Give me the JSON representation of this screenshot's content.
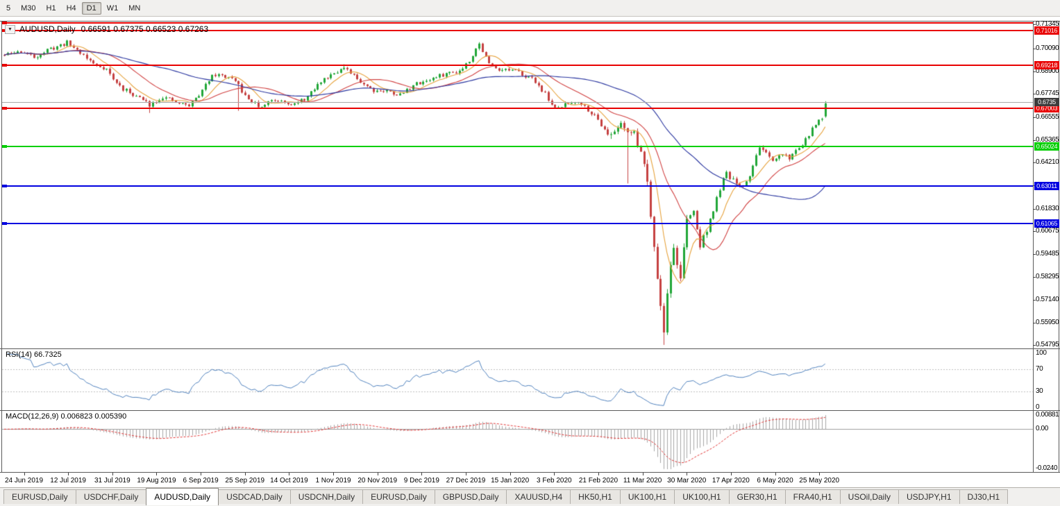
{
  "toolbar": {
    "timeframes": [
      {
        "label": "5",
        "active": false
      },
      {
        "label": "M30",
        "active": false
      },
      {
        "label": "H1",
        "active": false
      },
      {
        "label": "H4",
        "active": false
      },
      {
        "label": "D1",
        "active": true
      },
      {
        "label": "W1",
        "active": false
      },
      {
        "label": "MN",
        "active": false
      }
    ]
  },
  "chart_header": {
    "dropdown_icon": "▼",
    "symbol": "AUDUSD,Daily",
    "ohlc": "0.66591 0.67375 0.66523 0.67263"
  },
  "price_axis": {
    "min": 0.54795,
    "max": 0.71345,
    "labels": [
      "0.71345",
      "0.70090",
      "0.68900",
      "0.67745",
      "0.66555",
      "0.65365",
      "0.64210",
      "0.63020",
      "0.61830",
      "0.60675",
      "0.59485",
      "0.58295",
      "0.57140",
      "0.55950",
      "0.54795"
    ]
  },
  "date_axis": {
    "labels": [
      "24 Jun 2019",
      "12 Jul 2019",
      "31 Jul 2019",
      "19 Aug 2019",
      "6 Sep 2019",
      "25 Sep 2019",
      "14 Oct 2019",
      "1 Nov 2019",
      "20 Nov 2019",
      "9 Dec 2019",
      "27 Dec 2019",
      "15 Jan 2020",
      "3 Feb 2020",
      "21 Feb 2020",
      "11 Mar 2020",
      "30 Mar 2020",
      "17 Apr 2020",
      "6 May 2020",
      "25 May 2020"
    ]
  },
  "levels": [
    {
      "value": "",
      "price": 0.7142,
      "color": "#e80000"
    },
    {
      "value": "0.71016",
      "price": 0.71016,
      "color": "#e80000"
    },
    {
      "value": "0.69218",
      "price": 0.69218,
      "color": "#e80000"
    },
    {
      "value": "0.67003",
      "price": 0.67003,
      "color": "#e80000"
    },
    {
      "value": "0.65024",
      "price": 0.65024,
      "color": "#00cf00"
    },
    {
      "value": "0.63011",
      "price": 0.63011,
      "color": "#0000e0"
    },
    {
      "value": "0.61065",
      "price": 0.61065,
      "color": "#0000e0"
    }
  ],
  "current_price": {
    "value": "0.6735",
    "price": 0.6735,
    "tag_color": "#3c3c3c"
  },
  "rsi_panel": {
    "label": "RSI(14) 66.7325",
    "line_color": "#4f81bd",
    "levels": [
      70,
      30
    ],
    "axis_labels": [
      {
        "text": "100",
        "v": 100
      },
      {
        "text": "70",
        "v": 70
      },
      {
        "text": "30",
        "v": 30
      },
      {
        "text": "0",
        "v": 0
      }
    ]
  },
  "macd_panel": {
    "label": "MACD(12,26,9) 0.006823 0.005390",
    "histogram_color": "#a6a6a6",
    "signal_color": "#e03030",
    "range": [
      -0.0245,
      0.0095
    ],
    "axis_labels": [
      {
        "text": "0.00881",
        "v": 0.00881
      },
      {
        "text": "0.00",
        "v": 0
      },
      {
        "text": "-0.0240",
        "v": -0.024
      }
    ]
  },
  "tabs": [
    {
      "label": "EURUSD,Daily",
      "active": false
    },
    {
      "label": "USDCHF,Daily",
      "active": false
    },
    {
      "label": "AUDUSD,Daily",
      "active": true
    },
    {
      "label": "USDCAD,Daily",
      "active": false
    },
    {
      "label": "USDCNH,Daily",
      "active": false
    },
    {
      "label": "EURUSD,Daily",
      "active": false
    },
    {
      "label": "GBPUSD,Daily",
      "active": false
    },
    {
      "label": "XAUUSD,H4",
      "active": false
    },
    {
      "label": "HK50,H1",
      "active": false
    },
    {
      "label": "UK100,H1",
      "active": false
    },
    {
      "label": "UK100,H1",
      "active": false
    },
    {
      "label": "GER30,H1",
      "active": false
    },
    {
      "label": "FRA40,H1",
      "active": false
    },
    {
      "label": "USOil,Daily",
      "active": false
    },
    {
      "label": "USDJPY,H1",
      "active": false
    },
    {
      "label": "DJ30,H1",
      "active": false
    }
  ],
  "chart_data": {
    "type": "candlestick",
    "symbol": "AUDUSD",
    "timeframe": "Daily",
    "last_ohlc": {
      "open": 0.66591,
      "high": 0.67375,
      "low": 0.66523,
      "close": 0.67263
    },
    "y_range": [
      0.54795,
      0.71345
    ],
    "x_range": [
      "24 Jun 2019",
      "29 May 2020"
    ],
    "num_candles": 250,
    "up_color": "#21a637",
    "down_color": "#c54040",
    "price_path": [
      [
        0,
        0.6975
      ],
      [
        5,
        0.6995
      ],
      [
        9,
        0.6965
      ],
      [
        13,
        0.7
      ],
      [
        19,
        0.704
      ],
      [
        23,
        0.699
      ],
      [
        27,
        0.693
      ],
      [
        31,
        0.6905
      ],
      [
        33,
        0.6848
      ],
      [
        36,
        0.68
      ],
      [
        40,
        0.6765
      ],
      [
        44,
        0.672
      ],
      [
        48,
        0.676
      ],
      [
        52,
        0.673
      ],
      [
        56,
        0.6715
      ],
      [
        60,
        0.679
      ],
      [
        63,
        0.688
      ],
      [
        68,
        0.686
      ],
      [
        71,
        0.682
      ],
      [
        73,
        0.676
      ],
      [
        78,
        0.67
      ],
      [
        80,
        0.674
      ],
      [
        84,
        0.6745
      ],
      [
        88,
        0.672
      ],
      [
        92,
        0.676
      ],
      [
        96,
        0.684
      ],
      [
        100,
        0.689
      ],
      [
        103,
        0.6905
      ],
      [
        108,
        0.684
      ],
      [
        112,
        0.6795
      ],
      [
        116,
        0.679
      ],
      [
        120,
        0.677
      ],
      [
        124,
        0.682
      ],
      [
        127,
        0.684
      ],
      [
        130,
        0.6855
      ],
      [
        134,
        0.688
      ],
      [
        138,
        0.6895
      ],
      [
        141,
        0.695
      ],
      [
        143,
        0.701
      ],
      [
        144,
        0.7032
      ],
      [
        147,
        0.693
      ],
      [
        150,
        0.6905
      ],
      [
        154,
        0.6895
      ],
      [
        157,
        0.688
      ],
      [
        161,
        0.684
      ],
      [
        164,
        0.6775
      ],
      [
        167,
        0.6695
      ],
      [
        170,
        0.672
      ],
      [
        174,
        0.674
      ],
      [
        178,
        0.668
      ],
      [
        181,
        0.662
      ],
      [
        184,
        0.6555
      ],
      [
        187,
        0.663
      ],
      [
        189,
        0.659
      ],
      [
        191,
        0.656
      ],
      [
        193,
        0.649
      ],
      [
        195,
        0.633
      ],
      [
        197,
        0.6
      ],
      [
        199,
        0.568
      ],
      [
        200,
        0.5545
      ],
      [
        201,
        0.577
      ],
      [
        203,
        0.598
      ],
      [
        205,
        0.583
      ],
      [
        207,
        0.612
      ],
      [
        209,
        0.617
      ],
      [
        211,
        0.599
      ],
      [
        213,
        0.608
      ],
      [
        215,
        0.617
      ],
      [
        217,
        0.629
      ],
      [
        219,
        0.636
      ],
      [
        221,
        0.633
      ],
      [
        223,
        0.629
      ],
      [
        225,
        0.632
      ],
      [
        227,
        0.64
      ],
      [
        229,
        0.651
      ],
      [
        231,
        0.646
      ],
      [
        233,
        0.642
      ],
      [
        236,
        0.647
      ],
      [
        238,
        0.6445
      ],
      [
        240,
        0.648
      ],
      [
        242,
        0.652
      ],
      [
        244,
        0.656
      ],
      [
        246,
        0.662
      ],
      [
        248,
        0.6655
      ],
      [
        249,
        0.67
      ]
    ],
    "volatility": [
      [
        0,
        1.0
      ],
      [
        178,
        1.0
      ],
      [
        186,
        1.6
      ],
      [
        192,
        2.2
      ],
      [
        199,
        3.2
      ],
      [
        203,
        3.0
      ],
      [
        209,
        2.0
      ],
      [
        216,
        1.4
      ],
      [
        249,
        1.0
      ]
    ],
    "spikes": [
      {
        "i": 44,
        "low": 0.6677
      },
      {
        "i": 71,
        "low": 0.6688
      },
      {
        "i": 103,
        "high": 0.6928
      },
      {
        "i": 144,
        "high": 0.7041
      },
      {
        "i": 184,
        "low": 0.6543
      },
      {
        "i": 189,
        "low": 0.6313
      },
      {
        "i": 200,
        "low": 0.548
      }
    ],
    "moving_averages": [
      {
        "period": 8,
        "color": "#e6a23c"
      },
      {
        "period": 20,
        "color": "#d04040"
      },
      {
        "period": 50,
        "color": "#27339e"
      }
    ],
    "rsi": {
      "period": 14,
      "current": 66.7325
    },
    "macd": {
      "fast": 12,
      "slow": 26,
      "signal": 9,
      "current": 0.006823,
      "signal_current": 0.00539
    }
  }
}
